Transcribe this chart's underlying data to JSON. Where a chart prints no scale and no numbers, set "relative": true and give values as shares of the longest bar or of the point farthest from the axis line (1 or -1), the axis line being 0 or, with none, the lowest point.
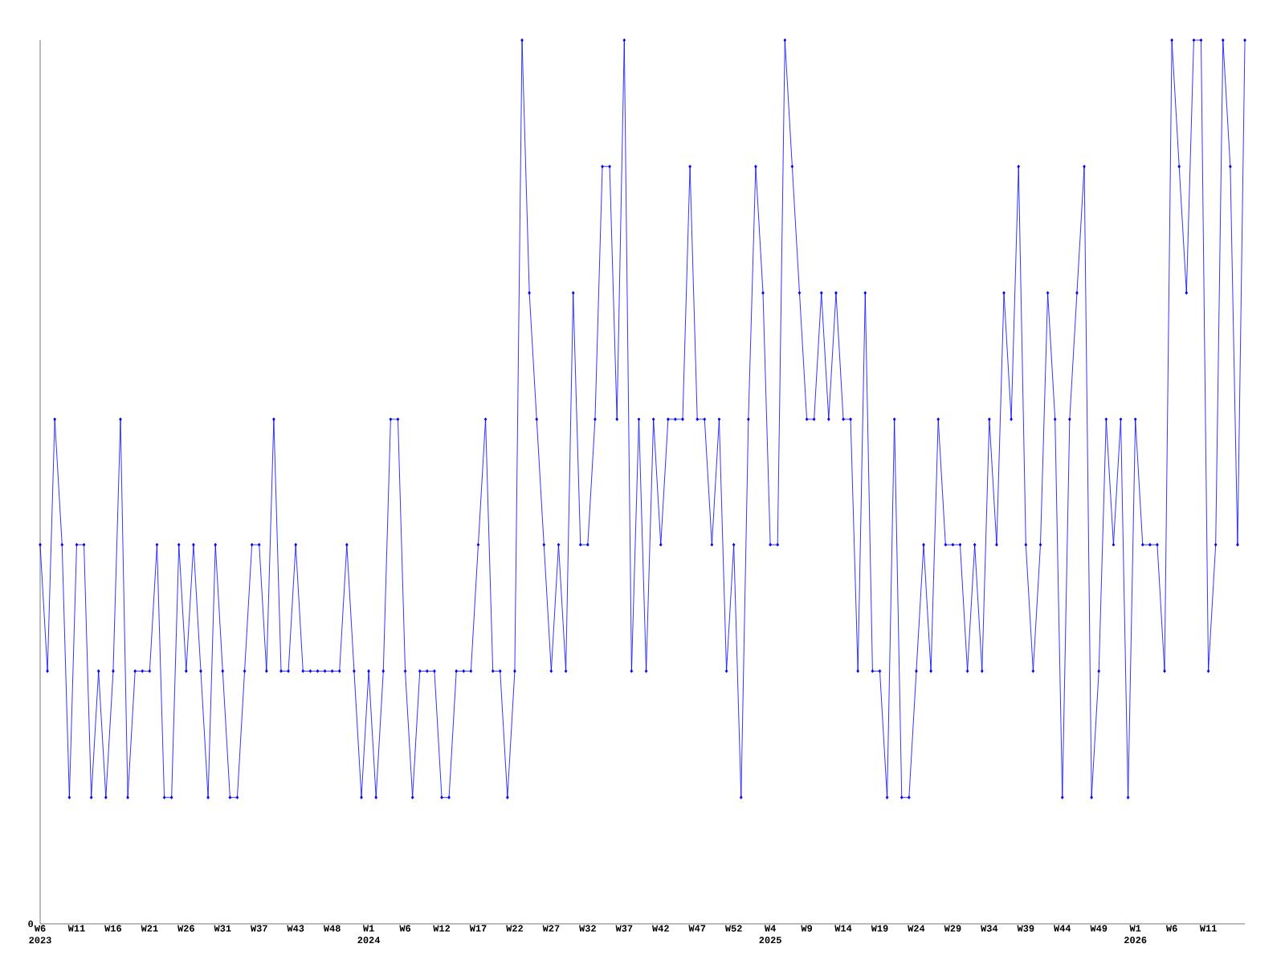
{
  "chart_data": {
    "type": "line",
    "relative": true,
    "color": "#0000ff",
    "marker": "diamond",
    "grid": false,
    "categories": [
      "W6 2023",
      null,
      null,
      null,
      null,
      "W11",
      null,
      null,
      null,
      null,
      "W16",
      null,
      null,
      null,
      null,
      "W21",
      null,
      null,
      null,
      null,
      "W26",
      null,
      null,
      null,
      null,
      "W31",
      null,
      null,
      null,
      null,
      "W37",
      null,
      null,
      null,
      null,
      "W43",
      null,
      null,
      null,
      null,
      "W48",
      null,
      null,
      null,
      null,
      "W1 2024",
      null,
      null,
      null,
      null,
      "W6",
      null,
      null,
      null,
      null,
      "W12",
      null,
      null,
      null,
      null,
      "W17",
      null,
      null,
      null,
      null,
      "W22",
      null,
      null,
      null,
      null,
      "W27",
      null,
      null,
      null,
      null,
      "W32",
      null,
      null,
      null,
      null,
      "W37",
      null,
      null,
      null,
      null,
      "W42",
      null,
      null,
      null,
      null,
      "W47",
      null,
      null,
      null,
      null,
      "W52",
      null,
      null,
      null,
      null,
      "W4 2025",
      null,
      null,
      null,
      null,
      "W9",
      null,
      null,
      null,
      null,
      "W14",
      null,
      null,
      null,
      null,
      "W19",
      null,
      null,
      null,
      null,
      "W24",
      null,
      null,
      null,
      null,
      "W29",
      null,
      null,
      null,
      null,
      "W34",
      null,
      null,
      null,
      null,
      "W39",
      null,
      null,
      null,
      null,
      "W44",
      null,
      null,
      null,
      null,
      "W49",
      null,
      null,
      null,
      null,
      "W1 2026",
      null,
      null,
      null,
      null,
      "W6",
      null,
      null,
      null,
      null,
      "W11",
      null,
      null,
      null,
      null,
      null
    ],
    "values": [
      0.429,
      0.286,
      0.571,
      0.429,
      0.143,
      0.429,
      0.429,
      0.143,
      0.286,
      0.143,
      0.286,
      0.571,
      0.143,
      0.286,
      0.286,
      0.286,
      0.429,
      0.143,
      0.143,
      0.429,
      0.286,
      0.429,
      0.286,
      0.143,
      0.429,
      0.286,
      0.143,
      0.143,
      0.286,
      0.429,
      0.429,
      0.286,
      0.571,
      0.286,
      0.286,
      0.429,
      0.286,
      0.286,
      0.286,
      0.286,
      0.286,
      0.286,
      0.429,
      0.286,
      0.143,
      0.286,
      0.143,
      0.286,
      0.571,
      0.571,
      0.286,
      0.143,
      0.286,
      0.286,
      0.286,
      0.143,
      0.143,
      0.286,
      0.286,
      0.286,
      0.429,
      0.571,
      0.286,
      0.286,
      0.143,
      0.286,
      1,
      0.714,
      0.571,
      0.429,
      0.286,
      0.429,
      0.286,
      0.714,
      0.429,
      0.429,
      0.571,
      0.857,
      0.857,
      0.571,
      1,
      0.286,
      0.571,
      0.286,
      0.571,
      0.429,
      0.571,
      0.571,
      0.571,
      0.857,
      0.571,
      0.571,
      0.429,
      0.571,
      0.286,
      0.429,
      0.143,
      0.571,
      0.857,
      0.714,
      0.429,
      0.429,
      1,
      0.857,
      0.714,
      0.571,
      0.571,
      0.714,
      0.571,
      0.714,
      0.571,
      0.571,
      0.286,
      0.714,
      0.286,
      0.286,
      0.143,
      0.571,
      0.143,
      0.143,
      0.286,
      0.429,
      0.286,
      0.571,
      0.429,
      0.429,
      0.429,
      0.286,
      0.429,
      0.286,
      0.571,
      0.429,
      0.714,
      0.571,
      0.857,
      0.429,
      0.286,
      0.429,
      0.714,
      0.571,
      0.143,
      0.571,
      0.714,
      0.857,
      0.143,
      0.286,
      0.571,
      0.429,
      0.571,
      0.143,
      0.571,
      0.429,
      0.429,
      0.429,
      0.286,
      1,
      0.857,
      0.714,
      1,
      1,
      0.286,
      0.429,
      1,
      0.857,
      0.429,
      1
    ],
    "annotations": [
      "0"
    ]
  }
}
